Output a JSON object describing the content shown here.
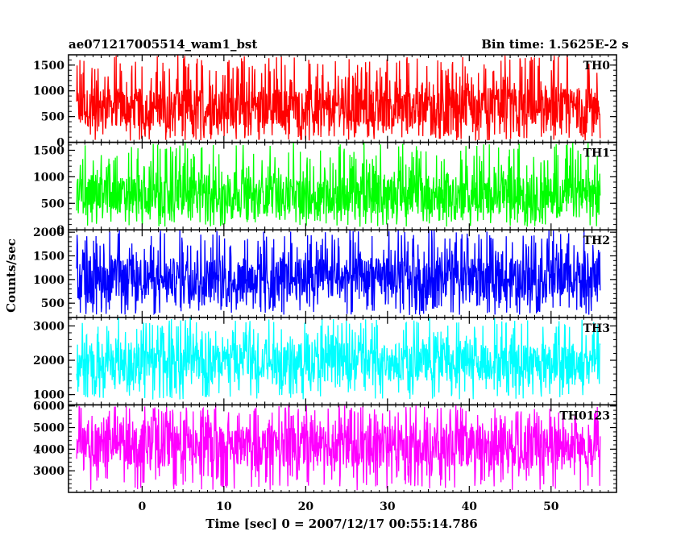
{
  "header": {
    "left_title": "ae071217005514_wam1_bst",
    "right_title": "Bin time: 1.5625E-2 s"
  },
  "chart_data": {
    "type": "line",
    "title": "ae071217005514_wam1_bst",
    "subtitle": "Bin time: 1.5625E-2 s",
    "xlabel": "Time [sec] 0 = 2007/12/17 00:55:14.786",
    "ylabel": "Counts/sec",
    "xlim": [
      -9,
      58
    ],
    "x_range_of_data": [
      -8,
      56
    ],
    "x_ticks": [
      0,
      10,
      20,
      30,
      40,
      50
    ],
    "grid": false,
    "legend": "none",
    "panels": [
      {
        "name": "TH0",
        "color": "#ff0000",
        "ylim": [
          0,
          1700
        ],
        "y_ticks": [
          0,
          500,
          1000,
          1500
        ],
        "y_tick_labels": [
          "0",
          "500",
          "1000",
          "1500"
        ],
        "typical_low": 300,
        "typical_high": 1050,
        "min": 30,
        "max": 1700
      },
      {
        "name": "TH1",
        "color": "#00ff00",
        "ylim": [
          0,
          1650
        ],
        "y_ticks": [
          0,
          500,
          1000,
          1500
        ],
        "y_tick_labels": [
          "0",
          "500",
          "1000",
          "1500"
        ],
        "typical_low": 300,
        "typical_high": 1000,
        "min": 60,
        "max": 1650
      },
      {
        "name": "TH2",
        "color": "#0000ff",
        "ylim": [
          200,
          2050
        ],
        "y_ticks": [
          500,
          1000,
          1500,
          2000
        ],
        "y_tick_labels": [
          "500",
          "1000",
          "1500",
          "2000"
        ],
        "typical_low": 600,
        "typical_high": 1450,
        "min": 250,
        "max": 2050
      },
      {
        "name": "TH3",
        "color": "#00ffff",
        "ylim": [
          700,
          3250
        ],
        "y_ticks": [
          1000,
          2000,
          3000
        ],
        "y_tick_labels": [
          "1000",
          "2000",
          "3000"
        ],
        "typical_low": 1400,
        "typical_high": 2500,
        "min": 850,
        "max": 3250
      },
      {
        "name": "TH0123",
        "color": "#ff00ff",
        "ylim": [
          2000,
          6050
        ],
        "y_ticks": [
          3000,
          4000,
          5000,
          6000
        ],
        "y_tick_labels": [
          "3000",
          "4000",
          "5000",
          "6000"
        ],
        "typical_low": 3200,
        "typical_high": 5100,
        "min": 2100,
        "max": 6050
      }
    ]
  }
}
